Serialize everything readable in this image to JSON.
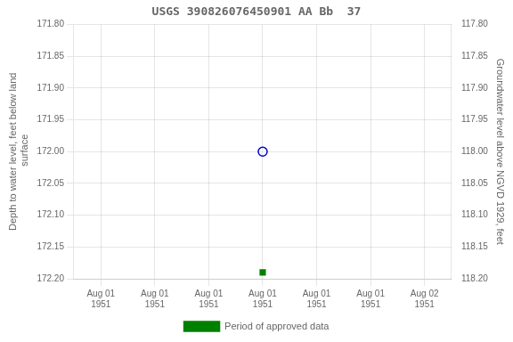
{
  "chart_data": {
    "type": "scatter",
    "title": "USGS 390826076450901 AA Bb  37",
    "y_label": "Depth to water level, feet below land\n surface",
    "y2_label": "Groundwater level above NGVD 1929, feet",
    "categories": [
      "Aug 01\n1951",
      "Aug 01\n1951",
      "Aug 01\n1951",
      "Aug 01\n1951",
      "Aug 01\n1951",
      "Aug 01\n1951",
      "Aug 02\n1951"
    ],
    "series": [
      {
        "color": "#0000cc",
        "marker": "open_circle",
        "values": [
          null,
          null,
          null,
          172.0,
          null,
          null,
          null
        ]
      },
      {
        "name": "Period of approved data",
        "color": "#008000",
        "marker": "square",
        "values": [
          null,
          null,
          null,
          172.19,
          null,
          null,
          null
        ]
      }
    ],
    "ylim": [
      172.2,
      171.8
    ],
    "yticks": [
      {
        "value": 171.8,
        "label": "171.80"
      },
      {
        "value": 171.85,
        "label": "171.85"
      },
      {
        "value": 171.9,
        "label": "171.90"
      },
      {
        "value": 171.95,
        "label": "171.95"
      },
      {
        "value": 172.0,
        "label": "172.00"
      },
      {
        "value": 172.05,
        "label": "172.05"
      },
      {
        "value": 172.1,
        "label": "172.10"
      },
      {
        "value": 172.15,
        "label": "172.15"
      },
      {
        "value": 172.2,
        "label": "172.20"
      }
    ],
    "y2lim": [
      118.2,
      117.8
    ],
    "y2ticks": [
      {
        "value": 117.8,
        "label": "117.80"
      },
      {
        "value": 117.85,
        "label": "117.85"
      },
      {
        "value": 117.9,
        "label": "117.90"
      },
      {
        "value": 117.95,
        "label": "117.95"
      },
      {
        "value": 118.0,
        "label": "118.00"
      },
      {
        "value": 118.05,
        "label": "118.05"
      },
      {
        "value": 118.1,
        "label": "118.10"
      },
      {
        "value": 118.15,
        "label": "118.15"
      },
      {
        "value": 118.2,
        "label": "118.20"
      }
    ],
    "grid": true,
    "legend": "bottom"
  }
}
